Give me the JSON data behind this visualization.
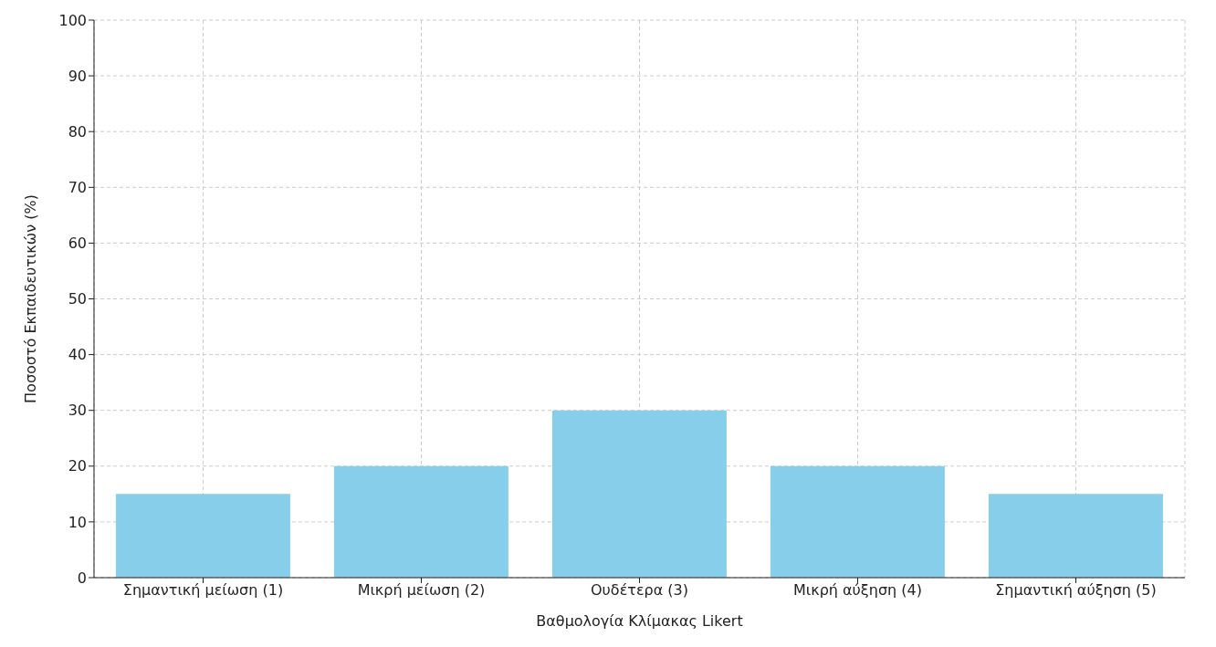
{
  "chart_data": {
    "type": "bar",
    "xlabel": "Βαθμολογία Κλίμακας Likert",
    "ylabel": "Ποσοστό Εκπαιδευτικών (%)",
    "categories": [
      "Σημαντική μείωση (1)",
      "Μικρή μείωση (2)",
      "Ουδέτερα (3)",
      "Μικρή αύξηση (4)",
      "Σημαντική αύξηση (5)"
    ],
    "values": [
      15,
      20,
      30,
      20,
      15
    ],
    "color": "#87ceeb",
    "ylim": [
      0,
      100
    ],
    "yticks": [
      0,
      10,
      20,
      30,
      40,
      50,
      60,
      70,
      80,
      90,
      100
    ],
    "grid": true
  }
}
